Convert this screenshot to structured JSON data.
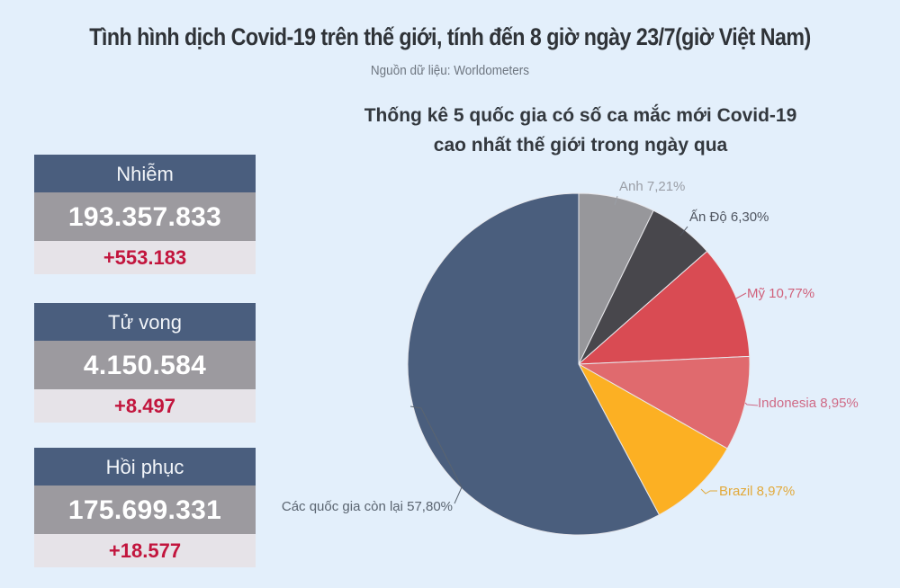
{
  "header": {
    "title": "Tình hình dịch Covid-19 trên thế giới, tính đến 8 giờ ngày 23/7(giờ Việt Nam)",
    "source": "Nguồn dữ liệu: Worldometers"
  },
  "stats": [
    {
      "label": "Nhiễm",
      "total": "193.357.833",
      "delta": "+553.183"
    },
    {
      "label": "Tử vong",
      "total": "4.150.584",
      "delta": "+8.497"
    },
    {
      "label": "Hồi phục",
      "total": "175.699.331",
      "delta": "+18.577"
    }
  ],
  "chart": {
    "title_line1": "Thống kê 5 quốc gia có số ca mắc  mới Covid-19",
    "title_line2": "cao nhất thế giới trong ngày qua"
  },
  "chart_data": {
    "type": "pie",
    "title": "Thống kê 5 quốc gia có số ca mắc mới Covid-19 cao nhất thế giới trong ngày qua",
    "start_angle_deg": 0,
    "direction": "clockwise",
    "slices": [
      {
        "name": "Anh",
        "value": 7.21,
        "label": "Anh 7,21%",
        "color": "#97979b",
        "label_color": "#9a9ea6"
      },
      {
        "name": "Ấn Độ",
        "value": 6.3,
        "label": "Ấn Độ 6,30%",
        "color": "#48474c",
        "label_color": "#4f5560"
      },
      {
        "name": "Mỹ",
        "value": 10.77,
        "label": "Mỹ 10,77%",
        "color": "#d94b53",
        "label_color": "#d0607a"
      },
      {
        "name": "Indonesia",
        "value": 8.95,
        "label": "Indonesia 8,95%",
        "color": "#e06a6e",
        "label_color": "#cf6a86"
      },
      {
        "name": "Brazil",
        "value": 8.97,
        "label": "Brazil 8,97%",
        "color": "#fcb023",
        "label_color": "#e2a93a"
      },
      {
        "name": "Các quốc gia còn lại",
        "value": 57.8,
        "label": "Các quốc gia còn lại 57,80%",
        "color": "#4a5e7d",
        "label_color": "#5a6470"
      }
    ],
    "legend": "none (inline labels)"
  }
}
